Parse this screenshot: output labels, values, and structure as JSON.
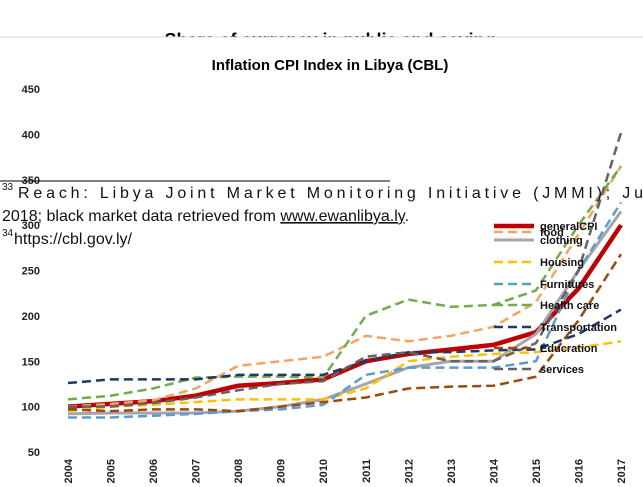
{
  "header": {
    "title": "Share of currency in public and saving"
  },
  "chart_data": {
    "type": "line",
    "title": "Inflation CPI Index in Libya (CBL)",
    "categories": [
      "2004",
      "2005",
      "2006",
      "2007",
      "2008",
      "2009",
      "2010",
      "2011",
      "2012",
      "2013",
      "2014",
      "2015",
      "2016",
      "2017"
    ],
    "ylim": [
      30,
      460
    ],
    "yticks": [
      50,
      100,
      150,
      200,
      250,
      300,
      350,
      400,
      450
    ],
    "grid": false,
    "legend": "right",
    "series": [
      {
        "name": "generalCPI",
        "color": "#c00000",
        "values": [
          100,
          103,
          106,
          112,
          123,
          126,
          130,
          150,
          158,
          163,
          168,
          182,
          230,
          300
        ]
      },
      {
        "name": "food",
        "color": "#f4a460",
        "values": [
          100,
          103,
          107,
          120,
          145,
          150,
          155,
          178,
          172,
          178,
          188,
          215,
          290,
          365
        ]
      },
      {
        "name": "clothing",
        "color": "#a6a6a6",
        "values": [
          92,
          93,
          93,
          93,
          95,
          100,
          108,
          125,
          143,
          150,
          150,
          180,
          250,
          315
        ]
      },
      {
        "name": "Housing",
        "color": "#ffc000",
        "values": [
          95,
          100,
          102,
          105,
          108,
          108,
          108,
          120,
          150,
          155,
          158,
          160,
          165,
          172
        ]
      },
      {
        "name": "Furnitures",
        "color": "#5b9bd5",
        "values": [
          88,
          88,
          90,
          92,
          95,
          97,
          102,
          135,
          143,
          143,
          143,
          150,
          250,
          325
        ]
      },
      {
        "name": "Health care",
        "color": "#70ad47",
        "values": [
          108,
          112,
          120,
          132,
          133,
          133,
          132,
          200,
          218,
          210,
          212,
          228,
          300,
          365
        ]
      },
      {
        "name": "Transportation",
        "color": "#1f3864",
        "values": [
          126,
          130,
          130,
          130,
          135,
          135,
          135,
          150,
          160,
          160,
          162,
          163,
          180,
          207
        ]
      },
      {
        "name": "Educration",
        "color": "#9e480e",
        "values": [
          97,
          95,
          97,
          97,
          95,
          100,
          105,
          110,
          120,
          122,
          123,
          133,
          195,
          268
        ]
      },
      {
        "name": "services",
        "color": "#636363",
        "values": [
          100,
          100,
          104,
          110,
          118,
          125,
          128,
          155,
          160,
          150,
          150,
          170,
          250,
          402
        ]
      }
    ]
  },
  "footnotes": [
    {
      "mark": "33",
      "line1": "Reach: Libya Joint Market Monitoring Initiative (JMMI); Ju",
      "line2": "2018; black market data retrieved from ",
      "link": "www.ewanlibya.ly",
      "after": "."
    },
    {
      "mark": "34",
      "text": " https://cbl.gov.ly/"
    }
  ]
}
